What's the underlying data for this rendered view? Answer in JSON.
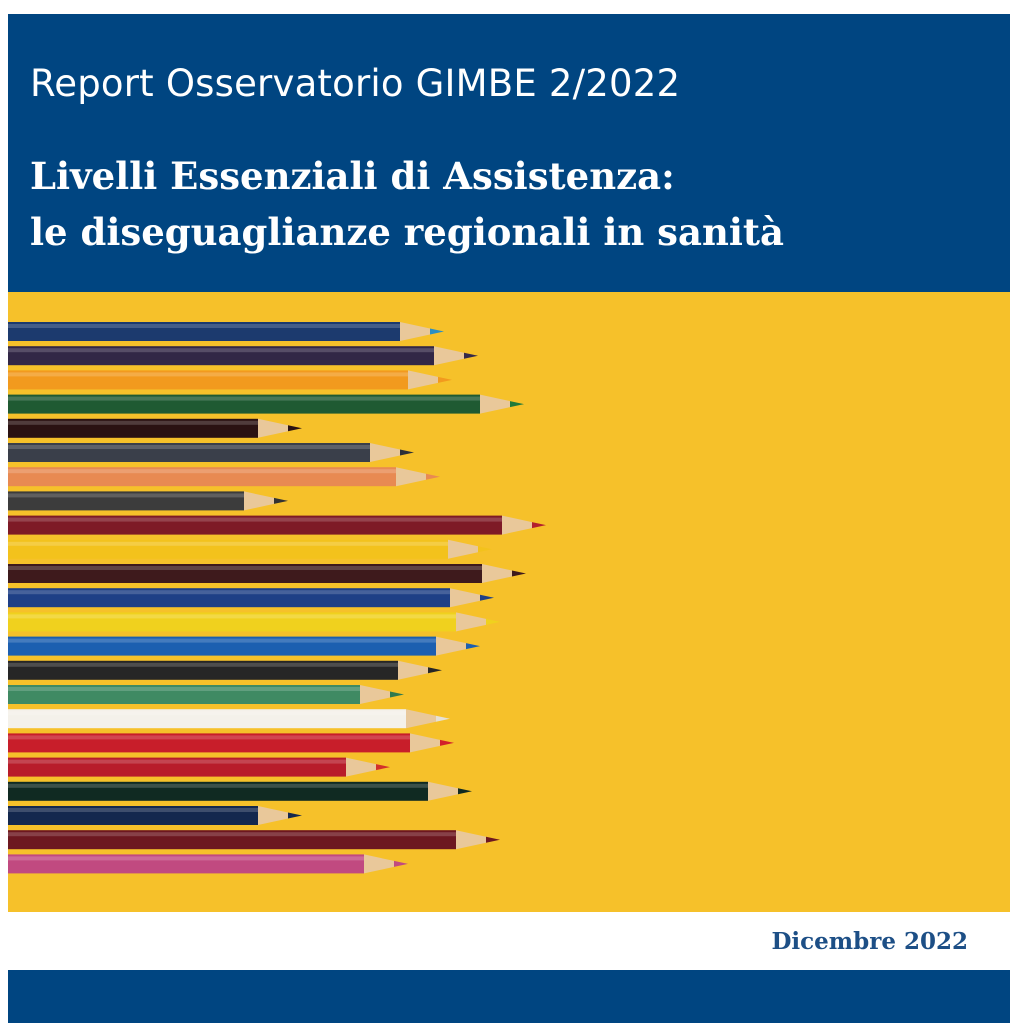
{
  "cover": {
    "series_title": "Report Osservatorio GIMBE 2/2022",
    "title_line_1": "Livelli Essenziali di Assistenza:",
    "title_line_2": "le diseguaglianze regionali in sanità",
    "date": "Dicembre 2022"
  },
  "colors": {
    "header_blue": "#004581",
    "background_yellow": "#f6c12a",
    "date_text": "#1d4f86"
  },
  "pencils": [
    {
      "color": "#1c3a6e",
      "tip": "#2b8fc2"
    },
    {
      "color": "#322746",
      "tip": "#352a4a"
    },
    {
      "color": "#f29a1e",
      "tip": "#f29a1e"
    },
    {
      "color": "#1f5a32",
      "tip": "#1f7a3a"
    },
    {
      "color": "#2a1212",
      "tip": "#2a1212"
    },
    {
      "color": "#3a3f4a",
      "tip": "#2c3038"
    },
    {
      "color": "#e88a52",
      "tip": "#e88a52"
    },
    {
      "color": "#3c3c3c",
      "tip": "#333333"
    },
    {
      "color": "#7e1a26",
      "tip": "#b3202e"
    },
    {
      "color": "#f3c21c",
      "tip": "#f3c21c"
    },
    {
      "color": "#3e1a1c",
      "tip": "#3e1a1c"
    },
    {
      "color": "#1e3f86",
      "tip": "#1e3f86"
    },
    {
      "color": "#f0d11e",
      "tip": "#f0d11e"
    },
    {
      "color": "#1c5fb0",
      "tip": "#1c5fb0"
    },
    {
      "color": "#262626",
      "tip": "#262626"
    },
    {
      "color": "#3f8a63",
      "tip": "#2f7a4f"
    },
    {
      "color": "#f4f1ea",
      "tip": "#e6e1d6"
    },
    {
      "color": "#c81e2a",
      "tip": "#d2202a"
    },
    {
      "color": "#b81c2a",
      "tip": "#d2302a"
    },
    {
      "color": "#102a22",
      "tip": "#102a22"
    },
    {
      "color": "#14284e",
      "tip": "#14284e"
    },
    {
      "color": "#6d1820",
      "tip": "#6d1820"
    },
    {
      "color": "#c14a80",
      "tip": "#c14a80"
    }
  ]
}
